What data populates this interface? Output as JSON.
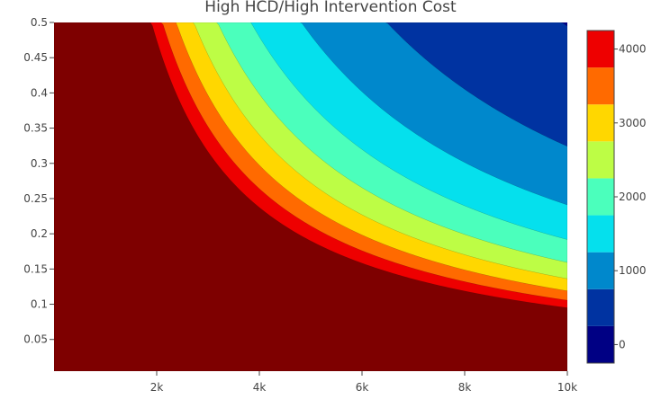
{
  "chart_data": {
    "type": "heatmap",
    "subtype": "filled-contour",
    "title": "High HCD/High Intervention Cost",
    "xlabel": "",
    "ylabel": "",
    "xlim": [
      0,
      10000
    ],
    "ylim": [
      0.005,
      0.5
    ],
    "x_ticks": [
      2000,
      4000,
      6000,
      8000,
      10000
    ],
    "x_tick_labels": [
      "2k",
      "4k",
      "6k",
      "8k",
      "10k"
    ],
    "y_ticks": [
      0.05,
      0.1,
      0.15,
      0.2,
      0.25,
      0.3,
      0.35,
      0.4,
      0.45,
      0.5
    ],
    "y_tick_labels": [
      "0.05",
      "0.1",
      "0.15",
      "0.2",
      "0.25",
      "0.3",
      "0.35",
      "0.4",
      "0.45",
      "0.5"
    ],
    "surface": "z = 4700 / (x·y)·1000 - 700 (approximate fit read from contour positions)",
    "contour_levels": [
      -250,
      250,
      750,
      1250,
      1750,
      2250,
      2750,
      3250,
      3750,
      4250
    ],
    "band_colors": [
      "#000084",
      "#0033a1",
      "#0088cc",
      "#05e0ed",
      "#4bffbc",
      "#bdfd45",
      "#ffd700",
      "#ff6a00",
      "#ee0000",
      "#7e0000"
    ],
    "colorbar": {
      "ticks": [
        0,
        1000,
        2000,
        3000,
        4000
      ],
      "tick_labels": [
        "0",
        "1000",
        "2000",
        "3000",
        "4000"
      ],
      "range": [
        -250,
        4250
      ]
    },
    "grid": false,
    "legend": "colorbar-right"
  }
}
